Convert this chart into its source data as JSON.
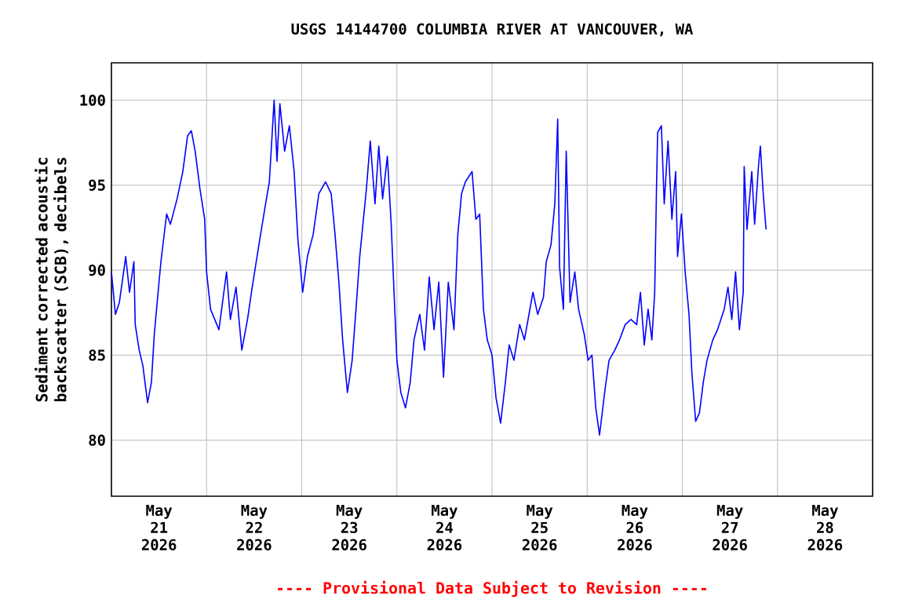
{
  "chart_data": {
    "type": "line",
    "title": "USGS 14144700 COLUMBIA RIVER AT VANCOUVER, WA",
    "ylabel": "Sediment corrected acoustic backscatter (SCB), decibels",
    "annotations": [
      "---- Provisional Data Subject to Revision ----"
    ],
    "xlim": [
      "2026-05-21T00:00",
      "2026-05-29T00:00"
    ],
    "xticks": [
      {
        "value": "2026-05-22T00:00",
        "label": null
      },
      {
        "value": "2026-05-23T00:00",
        "label": null
      },
      {
        "value": "2026-05-24T00:00",
        "label": null
      },
      {
        "value": "2026-05-25T00:00",
        "label": null
      },
      {
        "value": "2026-05-26T00:00",
        "label": null
      },
      {
        "value": "2026-05-27T00:00",
        "label": null
      },
      {
        "value": "2026-05-28T00:00",
        "label": null
      },
      {
        "value": "2026-05-21T12:00",
        "label": "May 21 2026"
      },
      {
        "value": "2026-05-22T12:00",
        "label": "May 22 2026"
      },
      {
        "value": "2026-05-23T12:00",
        "label": "May 23 2026"
      },
      {
        "value": "2026-05-24T12:00",
        "label": "May 24 2026"
      },
      {
        "value": "2026-05-25T12:00",
        "label": "May 25 2026"
      },
      {
        "value": "2026-05-26T12:00",
        "label": "May 26 2026"
      },
      {
        "value": "2026-05-27T12:00",
        "label": "May 27 2026"
      },
      {
        "value": "2026-05-28T12:00",
        "label": "May 28 2026"
      }
    ],
    "ylim": [
      76.7,
      102.2
    ],
    "yticks": [
      80,
      85,
      90,
      95,
      100
    ],
    "grid": true,
    "series": [
      {
        "color": "#0000ff",
        "x": [
          "2026-05-21T00:00",
          "2026-05-21T01:00",
          "2026-05-21T02:00",
          "2026-05-21T03:36",
          "2026-05-21T04:34",
          "2026-05-21T05:40",
          "2026-05-21T06:00",
          "2026-05-21T07:00",
          "2026-05-21T07:55",
          "2026-05-21T09:07",
          "2026-05-21T10:05",
          "2026-05-21T10:48",
          "2026-05-21T11:46",
          "2026-05-21T12:29",
          "2026-05-21T13:55",
          "2026-05-21T14:53",
          "2026-05-21T16:34",
          "2026-05-21T18:00",
          "2026-05-21T19:12",
          "2026-05-21T20:10",
          "2026-05-21T21:07",
          "2026-05-21T22:19",
          "2026-05-21T23:31",
          "2026-05-22T00:00",
          "2026-05-22T01:00",
          "2026-05-22T03:07",
          "2026-05-22T05:02",
          "2026-05-22T06:00",
          "2026-05-22T07:26",
          "2026-05-22T08:53",
          "2026-05-22T10:19",
          "2026-05-22T11:31",
          "2026-05-22T13:12",
          "2026-05-22T14:53",
          "2026-05-22T15:50",
          "2026-05-22T17:02",
          "2026-05-22T17:46",
          "2026-05-22T18:29",
          "2026-05-22T19:41",
          "2026-05-22T20:53",
          "2026-05-22T22:05",
          "2026-05-22T23:02",
          "2026-05-23T00:14",
          "2026-05-23T01:26",
          "2026-05-23T02:53",
          "2026-05-23T04:19",
          "2026-05-23T06:00",
          "2026-05-23T07:26",
          "2026-05-23T08:24",
          "2026-05-23T09:22",
          "2026-05-23T10:19",
          "2026-05-23T11:31",
          "2026-05-23T12:43",
          "2026-05-23T13:41",
          "2026-05-23T14:38",
          "2026-05-23T16:19",
          "2026-05-23T17:17",
          "2026-05-23T18:29",
          "2026-05-23T19:26",
          "2026-05-23T20:24",
          "2026-05-23T21:36",
          "2026-05-23T22:34",
          "2026-05-23T23:17",
          "2026-05-24T00:00",
          "2026-05-24T01:00",
          "2026-05-24T02:10",
          "2026-05-24T03:22",
          "2026-05-24T04:19",
          "2026-05-24T05:46",
          "2026-05-24T06:58",
          "2026-05-24T08:10",
          "2026-05-24T09:22",
          "2026-05-24T10:34",
          "2026-05-24T11:46",
          "2026-05-24T12:58",
          "2026-05-24T14:24",
          "2026-05-24T15:22",
          "2026-05-24T16:19",
          "2026-05-24T17:17",
          "2026-05-24T18:58",
          "2026-05-24T19:55",
          "2026-05-24T20:53",
          "2026-05-24T21:50",
          "2026-05-24T22:48",
          "2026-05-25T00:00",
          "2026-05-25T01:00",
          "2026-05-25T02:10",
          "2026-05-25T03:22",
          "2026-05-25T04:19",
          "2026-05-25T05:31",
          "2026-05-25T06:58",
          "2026-05-25T08:10",
          "2026-05-25T10:19",
          "2026-05-25T11:31",
          "2026-05-25T12:58",
          "2026-05-25T13:41",
          "2026-05-25T14:53",
          "2026-05-25T15:50",
          "2026-05-25T16:34",
          "2026-05-25T17:02",
          "2026-05-25T18:00",
          "2026-05-25T18:43",
          "2026-05-25T19:41",
          "2026-05-25T20:53",
          "2026-05-25T21:50",
          "2026-05-25T23:17",
          "2026-05-26T00:14",
          "2026-05-26T01:12",
          "2026-05-26T02:10",
          "2026-05-26T03:07",
          "2026-05-26T04:34",
          "2026-05-26T05:31",
          "2026-05-26T06:58",
          "2026-05-26T08:10",
          "2026-05-26T09:36",
          "2026-05-26T11:02",
          "2026-05-26T12:29",
          "2026-05-26T13:26",
          "2026-05-26T14:24",
          "2026-05-26T15:22",
          "2026-05-26T16:19",
          "2026-05-26T17:02",
          "2026-05-26T17:31",
          "2026-05-26T17:46",
          "2026-05-26T18:43",
          "2026-05-26T19:26",
          "2026-05-26T20:24",
          "2026-05-26T21:22",
          "2026-05-26T22:19",
          "2026-05-26T22:48",
          "2026-05-26T23:46",
          "2026-05-27T00:43",
          "2026-05-27T01:41",
          "2026-05-27T02:24",
          "2026-05-27T03:22",
          "2026-05-27T04:19",
          "2026-05-27T05:17",
          "2026-05-27T06:14",
          "2026-05-27T07:41",
          "2026-05-27T08:53",
          "2026-05-27T10:34",
          "2026-05-27T11:31",
          "2026-05-27T12:29",
          "2026-05-27T13:26",
          "2026-05-27T14:24",
          "2026-05-27T15:22",
          "2026-05-27T15:36",
          "2026-05-27T16:19",
          "2026-05-27T17:31",
          "2026-05-27T18:14",
          "2026-05-27T19:12",
          "2026-05-27T19:41",
          "2026-05-27T20:24",
          "2026-05-27T21:07"
        ],
        "values": [
          89.9,
          87.4,
          88.1,
          90.8,
          88.7,
          90.5,
          86.8,
          85.3,
          84.4,
          82.2,
          83.4,
          86.2,
          88.7,
          90.5,
          93.3,
          92.7,
          94.2,
          95.8,
          97.9,
          98.2,
          97.0,
          94.8,
          93.0,
          89.9,
          87.7,
          86.5,
          89.9,
          87.1,
          89.0,
          85.3,
          87.1,
          89.0,
          91.5,
          93.9,
          95.2,
          100.0,
          96.4,
          99.8,
          97.0,
          98.5,
          95.8,
          91.8,
          88.7,
          90.8,
          92.1,
          94.5,
          95.2,
          94.5,
          92.1,
          89.3,
          85.9,
          82.8,
          84.7,
          87.7,
          90.8,
          94.8,
          97.6,
          93.9,
          97.3,
          94.2,
          96.7,
          92.7,
          88.7,
          84.7,
          82.8,
          81.9,
          83.4,
          85.9,
          87.4,
          85.3,
          89.6,
          86.5,
          89.3,
          83.7,
          89.3,
          86.5,
          92.1,
          94.5,
          95.2,
          95.8,
          93.0,
          93.3,
          87.7,
          85.9,
          85.0,
          82.5,
          81.0,
          83.4,
          85.6,
          84.7,
          86.8,
          85.9,
          88.7,
          87.4,
          88.4,
          90.5,
          91.5,
          93.9,
          98.9,
          90.2,
          87.7,
          97.0,
          88.1,
          89.9,
          87.7,
          86.2,
          84.7,
          85.0,
          81.9,
          80.3,
          83.1,
          84.7,
          85.3,
          85.9,
          86.8,
          87.1,
          86.8,
          88.7,
          85.6,
          87.7,
          85.9,
          88.7,
          95.2,
          98.1,
          98.5,
          93.9,
          97.6,
          93.0,
          95.8,
          90.8,
          93.3,
          89.9,
          87.4,
          84.0,
          81.1,
          81.6,
          83.4,
          84.7,
          85.9,
          86.5,
          87.7,
          89.0,
          87.1,
          89.9,
          86.5,
          88.7,
          96.1,
          92.4,
          95.8,
          92.7,
          96.1,
          97.3,
          94.5,
          92.4
        ]
      }
    ]
  }
}
